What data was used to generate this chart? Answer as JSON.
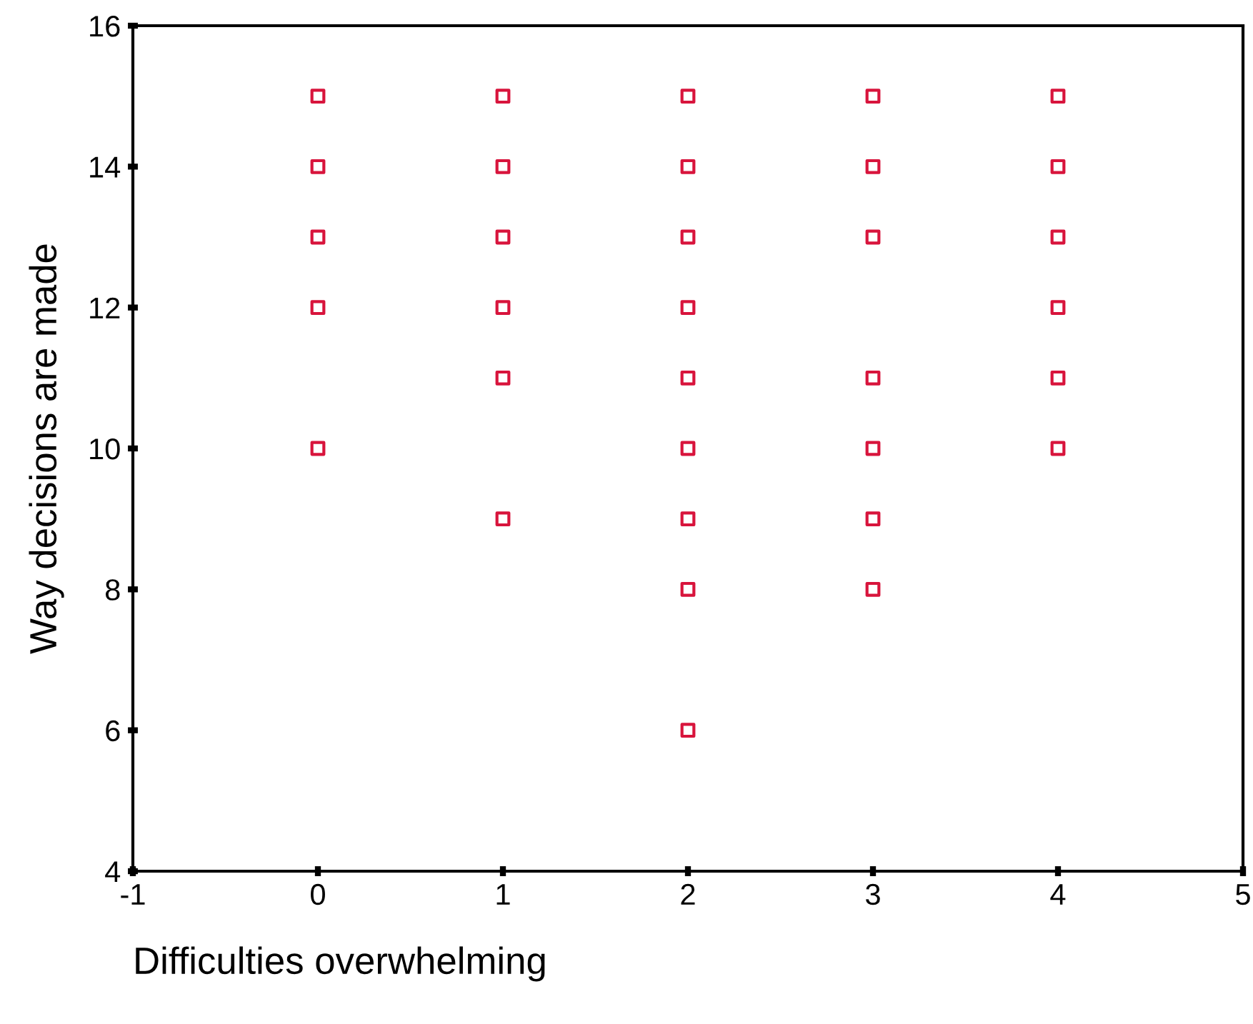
{
  "chart_data": {
    "type": "scatter",
    "xlabel": "Difficulties overwhelming",
    "ylabel": "Way decisions are made",
    "x": [
      0,
      0,
      0,
      0,
      0,
      1,
      1,
      1,
      1,
      1,
      1,
      2,
      2,
      2,
      2,
      2,
      2,
      2,
      2,
      2,
      3,
      3,
      3,
      3,
      3,
      3,
      3,
      4,
      4,
      4,
      4,
      4,
      4
    ],
    "series": [
      {
        "color": "#d8143c",
        "values": [
          15,
          14,
          13,
          12,
          10,
          15,
          14,
          13,
          12,
          11,
          9,
          15,
          14,
          13,
          12,
          11,
          10,
          9,
          8,
          6,
          15,
          14,
          13,
          11,
          10,
          9,
          8,
          15,
          14,
          13,
          12,
          11,
          10
        ]
      }
    ],
    "xlim": [
      -1,
      5
    ],
    "xticks": [
      -1,
      0,
      1,
      2,
      3,
      4,
      5
    ],
    "ylim": [
      4,
      16
    ],
    "yticks": [
      4,
      6,
      8,
      10,
      12,
      14,
      16
    ],
    "marker": "square",
    "grid": false,
    "legend": false
  }
}
